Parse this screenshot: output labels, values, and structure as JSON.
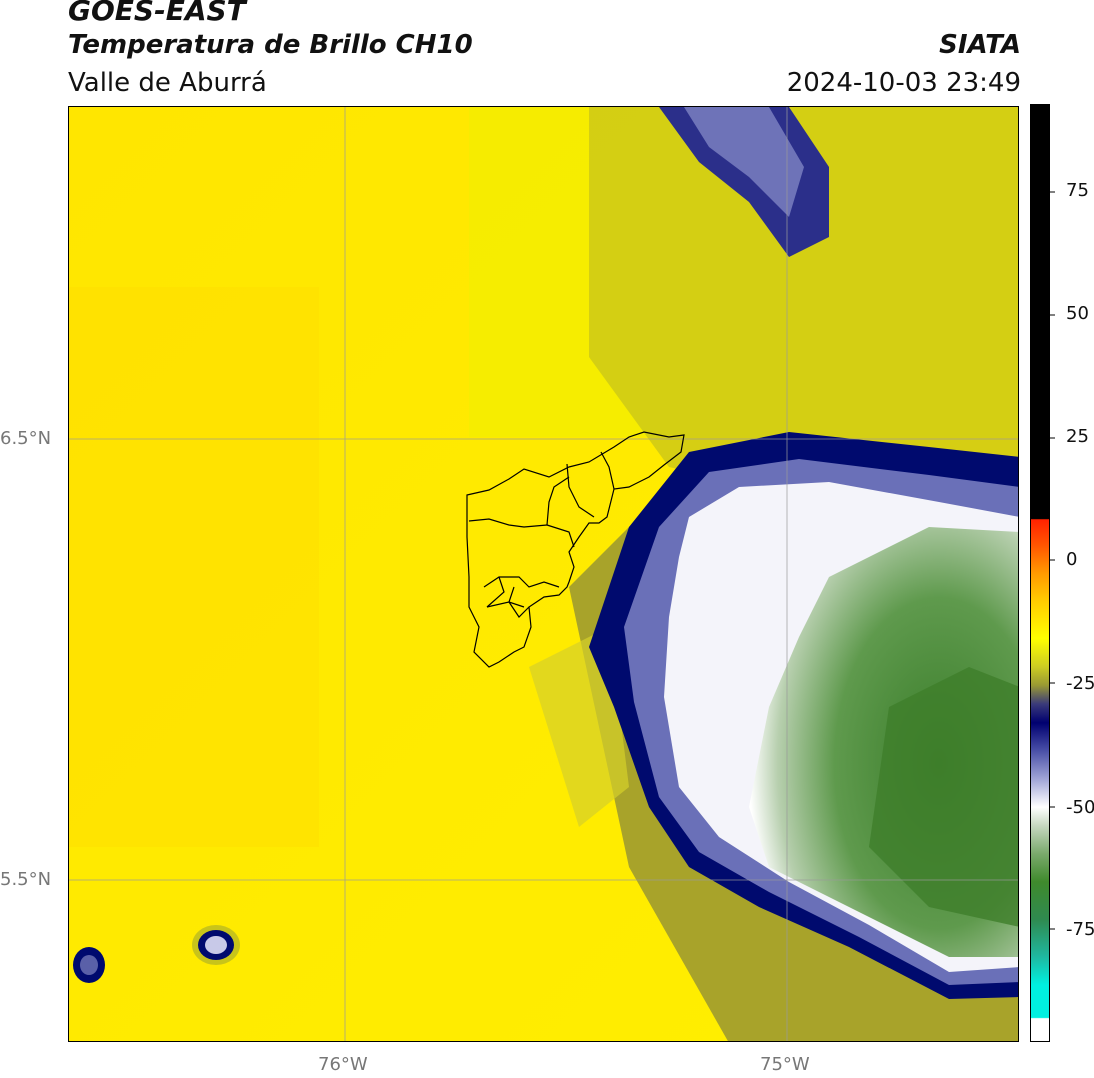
{
  "header": {
    "satellite": "GOES-EAST",
    "product": "Temperatura de Brillo CH10",
    "region": "Valle de Aburrá",
    "organization": "SIATA",
    "timestamp": "2024-10-03 23:49"
  },
  "map": {
    "lat_labels": [
      "6.5°N",
      "5.5°N"
    ],
    "lon_labels": [
      "76°W",
      "75°W"
    ]
  },
  "colorbar": {
    "ticks": [
      "75",
      "50",
      "25",
      "0",
      "-25",
      "-50",
      "-75"
    ],
    "colors": {
      "warm_top": "#000000",
      "red": "#ff2200",
      "orange": "#ff9900",
      "yellow": "#ffff00",
      "olive": "#999933",
      "navy": "#00006e",
      "white": "#ffffff",
      "green": "#3f8a2c",
      "teal": "#17d6c8"
    }
  }
}
